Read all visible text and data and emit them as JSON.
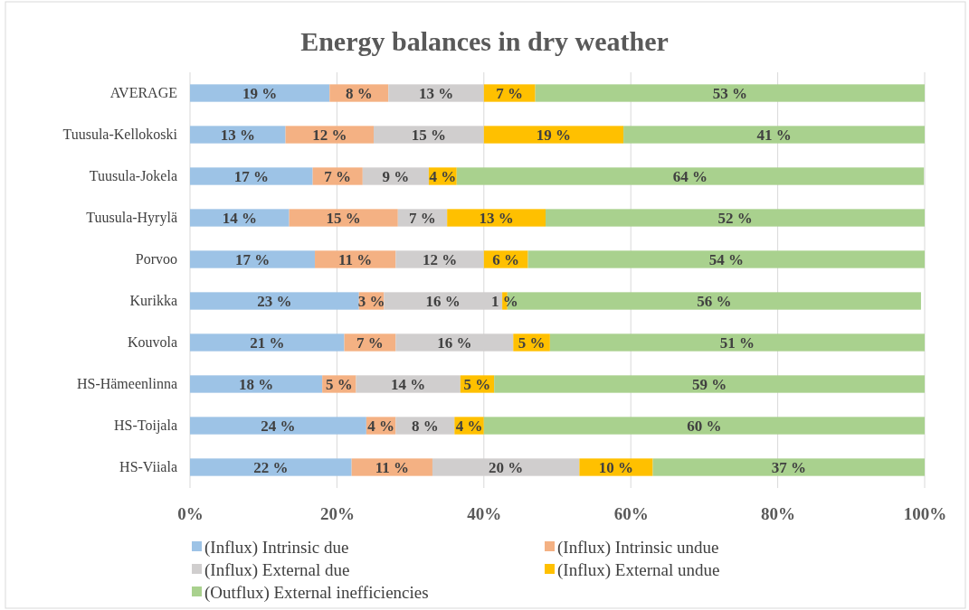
{
  "chart_data": {
    "type": "bar",
    "orientation": "horizontal",
    "stacked": true,
    "title": "Energy balances in dry weather",
    "categories": [
      "AVERAGE",
      "Tuusula-Kellokoski",
      "Tuusula-Jokela",
      "Tuusula-Hyrylä",
      "Porvoo",
      "Kurikka",
      "Kouvola",
      "HS-Hämeenlinna",
      "HS-Toijala",
      "HS-Viiala"
    ],
    "xlim": [
      0,
      100
    ],
    "xticks": [
      {
        "value": 0,
        "label": "0%"
      },
      {
        "value": 20,
        "label": "20%"
      },
      {
        "value": 40,
        "label": "40%"
      },
      {
        "value": 60,
        "label": "60%"
      },
      {
        "value": 80,
        "label": "80%"
      },
      {
        "value": 100,
        "label": "100%"
      }
    ],
    "grid": "x",
    "legend": "bottom",
    "series": [
      {
        "name": "(Influx) Intrinsic due",
        "color": "#9dc3e6",
        "values": [
          19,
          13,
          16.7,
          13.5,
          17,
          23,
          21,
          18.0,
          24,
          22
        ],
        "value_labels": [
          "19 %",
          "13 %",
          "17 %",
          "14 %",
          "17 %",
          "23 %",
          "21 %",
          "18 %",
          "24 %",
          "22 %"
        ]
      },
      {
        "name": "(Influx) Intrinsic undue",
        "color": "#f4b183",
        "values": [
          8,
          12,
          6.8,
          14.8,
          11,
          3.4,
          7,
          4.6,
          4,
          11
        ],
        "value_labels": [
          "8 %",
          "12 %",
          "7 %",
          "15 %",
          "11 %",
          "3 %",
          "7 %",
          "5 %",
          "4 %",
          "11 %"
        ]
      },
      {
        "name": "(Influx) External due",
        "color": "#d0cece",
        "values": [
          13,
          15,
          9.0,
          6.7,
          12,
          16.1,
          16,
          14.2,
          8,
          20
        ],
        "value_labels": [
          "13 %",
          "15 %",
          "9 %",
          "7 %",
          "12 %",
          "16 %",
          "16 %",
          "14 %",
          "8 %",
          "20 %"
        ]
      },
      {
        "name": "(Influx) External undue",
        "color": "#ffc000",
        "values": [
          7,
          19,
          3.8,
          13.4,
          6,
          0.7,
          5,
          4.6,
          4,
          10
        ],
        "value_labels": [
          "7 %",
          "19 %",
          "4 %",
          "13 %",
          "6 %",
          "1 %",
          "5 %",
          "5 %",
          "4 %",
          "10 %"
        ]
      },
      {
        "name": "(Outflux) External inefficiencies",
        "color": "#a9d18e",
        "values": [
          53,
          41,
          63.6,
          51.6,
          54,
          56.3,
          51,
          58.6,
          60,
          37
        ],
        "value_labels": [
          "53 %",
          "41 %",
          "64 %",
          "52 %",
          "54 %",
          "56 %",
          "51 %",
          "59 %",
          "60 %",
          "37 %"
        ]
      }
    ]
  }
}
